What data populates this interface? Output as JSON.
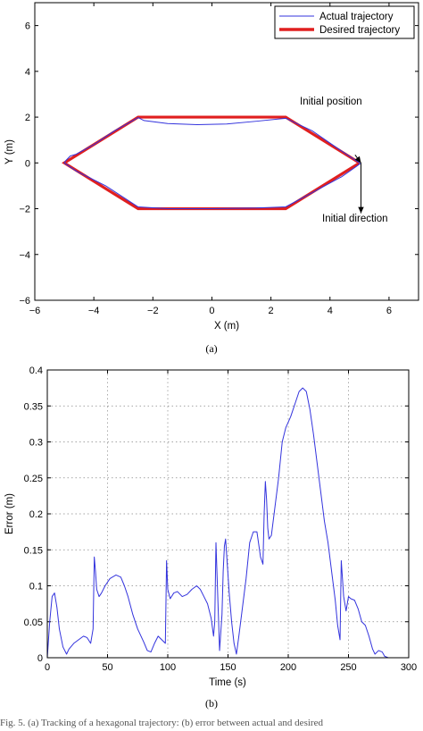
{
  "figure": {
    "caption_a": "(a)",
    "caption_b": "(b)",
    "bottom_text": "Fig. 5. (a) Tracking of a hexagonal trajectory: (b) error between actual and desired"
  },
  "chart_data": [
    {
      "type": "line",
      "xlabel": "X (m)",
      "ylabel": "Y (m)",
      "xlim": [
        -6,
        7
      ],
      "ylim": [
        -6,
        7
      ],
      "xticks": [
        -6,
        -4,
        -2,
        0,
        2,
        4,
        6
      ],
      "yticks": [
        -6,
        -4,
        -2,
        0,
        2,
        4,
        6
      ],
      "grid": false,
      "legend_position": "top-right",
      "series": [
        {
          "name": "Actual trajectory",
          "color": "#3333dd",
          "points": [
            [
              5.0,
              0.0
            ],
            [
              4.3,
              0.6
            ],
            [
              3.4,
              1.4
            ],
            [
              2.5,
              1.95
            ],
            [
              1.5,
              1.82
            ],
            [
              0.5,
              1.7
            ],
            [
              -0.5,
              1.67
            ],
            [
              -1.5,
              1.72
            ],
            [
              -2.3,
              1.85
            ],
            [
              -2.5,
              1.98
            ],
            [
              -3.3,
              1.4
            ],
            [
              -4.0,
              0.8
            ],
            [
              -4.6,
              0.38
            ],
            [
              -4.8,
              0.3
            ],
            [
              -4.95,
              0.1
            ],
            [
              -5.0,
              0.0
            ],
            [
              -4.6,
              -0.35
            ],
            [
              -3.6,
              -1.0
            ],
            [
              -2.5,
              -1.92
            ],
            [
              -1.5,
              -2.0
            ],
            [
              0.0,
              -2.0
            ],
            [
              1.5,
              -1.97
            ],
            [
              2.5,
              -1.92
            ],
            [
              3.4,
              -1.3
            ],
            [
              4.4,
              -0.6
            ],
            [
              4.9,
              -0.15
            ],
            [
              5.05,
              0.0
            ]
          ]
        },
        {
          "name": "Desired trajectory",
          "color": "#e01f1f",
          "points": [
            [
              5,
              0
            ],
            [
              2.5,
              2
            ],
            [
              -2.5,
              2
            ],
            [
              -5,
              0
            ],
            [
              -2.5,
              -2
            ],
            [
              2.5,
              -2
            ],
            [
              5,
              0
            ]
          ]
        }
      ],
      "annotations": [
        {
          "text": "Initial position"
        },
        {
          "text": "Initial direction"
        }
      ],
      "arrows": [
        {
          "from": [
            4.85,
            0.35
          ],
          "to": [
            5.05,
            0.0
          ]
        },
        {
          "from": [
            5.05,
            0.0
          ],
          "to": [
            5.05,
            -2.2
          ]
        }
      ]
    },
    {
      "type": "line",
      "xlabel": "Time (s)",
      "ylabel": "Error (m)",
      "xlim": [
        0,
        300
      ],
      "ylim": [
        0,
        0.4
      ],
      "xticks": [
        0,
        50,
        100,
        150,
        200,
        250,
        300
      ],
      "yticks": [
        0,
        0.05,
        0.1,
        0.15,
        0.2,
        0.25,
        0.3,
        0.35,
        0.4
      ],
      "grid": true,
      "series": [
        {
          "color": "#3333dd",
          "points": [
            [
              0,
              0
            ],
            [
              2,
              0.05
            ],
            [
              4,
              0.085
            ],
            [
              6,
              0.09
            ],
            [
              8,
              0.07
            ],
            [
              10,
              0.04
            ],
            [
              13,
              0.015
            ],
            [
              16,
              0.005
            ],
            [
              18,
              0.012
            ],
            [
              22,
              0.02
            ],
            [
              26,
              0.025
            ],
            [
              30,
              0.03
            ],
            [
              33,
              0.028
            ],
            [
              36,
              0.02
            ],
            [
              38,
              0.04
            ],
            [
              39,
              0.14
            ],
            [
              40,
              0.12
            ],
            [
              41,
              0.095
            ],
            [
              43,
              0.085
            ],
            [
              45,
              0.09
            ],
            [
              48,
              0.1
            ],
            [
              52,
              0.11
            ],
            [
              57,
              0.115
            ],
            [
              61,
              0.112
            ],
            [
              64,
              0.1
            ],
            [
              67,
              0.085
            ],
            [
              71,
              0.06
            ],
            [
              75,
              0.04
            ],
            [
              80,
              0.022
            ],
            [
              83,
              0.01
            ],
            [
              86,
              0.008
            ],
            [
              89,
              0.02
            ],
            [
              92,
              0.03
            ],
            [
              95,
              0.025
            ],
            [
              98,
              0.02
            ],
            [
              99,
              0.135
            ],
            [
              100,
              0.095
            ],
            [
              102,
              0.082
            ],
            [
              105,
              0.09
            ],
            [
              108,
              0.092
            ],
            [
              112,
              0.085
            ],
            [
              116,
              0.088
            ],
            [
              120,
              0.095
            ],
            [
              124,
              0.1
            ],
            [
              127,
              0.095
            ],
            [
              130,
              0.085
            ],
            [
              133,
              0.075
            ],
            [
              136,
              0.055
            ],
            [
              138,
              0.03
            ],
            [
              139,
              0.05
            ],
            [
              140,
              0.16
            ],
            [
              141,
              0.11
            ],
            [
              142,
              0.06
            ],
            [
              143,
              0.01
            ],
            [
              145,
              0.06
            ],
            [
              146,
              0.12
            ],
            [
              147,
              0.155
            ],
            [
              148,
              0.165
            ],
            [
              149,
              0.14
            ],
            [
              151,
              0.09
            ],
            [
              153,
              0.05
            ],
            [
              155,
              0.02
            ],
            [
              157,
              0.005
            ],
            [
              159,
              0.03
            ],
            [
              162,
              0.07
            ],
            [
              165,
              0.11
            ],
            [
              168,
              0.16
            ],
            [
              171,
              0.175
            ],
            [
              174,
              0.175
            ],
            [
              177,
              0.14
            ],
            [
              179,
              0.13
            ],
            [
              180,
              0.2
            ],
            [
              181,
              0.245
            ],
            [
              182,
              0.22
            ],
            [
              183,
              0.18
            ],
            [
              184,
              0.165
            ],
            [
              186,
              0.17
            ],
            [
              189,
              0.21
            ],
            [
              192,
              0.25
            ],
            [
              195,
              0.3
            ],
            [
              198,
              0.32
            ],
            [
              202,
              0.335
            ],
            [
              206,
              0.355
            ],
            [
              209,
              0.37
            ],
            [
              212,
              0.375
            ],
            [
              215,
              0.37
            ],
            [
              218,
              0.345
            ],
            [
              221,
              0.31
            ],
            [
              224,
              0.27
            ],
            [
              227,
              0.23
            ],
            [
              230,
              0.19
            ],
            [
              233,
              0.16
            ],
            [
              236,
              0.12
            ],
            [
              239,
              0.08
            ],
            [
              241,
              0.045
            ],
            [
              243,
              0.025
            ],
            [
              244,
              0.135
            ],
            [
              245,
              0.11
            ],
            [
              246,
              0.085
            ],
            [
              248,
              0.065
            ],
            [
              250,
              0.085
            ],
            [
              252,
              0.082
            ],
            [
              255,
              0.08
            ],
            [
              258,
              0.068
            ],
            [
              261,
              0.05
            ],
            [
              264,
              0.045
            ],
            [
              267,
              0.03
            ],
            [
              270,
              0.012
            ],
            [
              272,
              0.005
            ],
            [
              275,
              0.01
            ],
            [
              278,
              0.008
            ],
            [
              280,
              0.002
            ],
            [
              283,
              0.0
            ]
          ]
        }
      ]
    }
  ]
}
